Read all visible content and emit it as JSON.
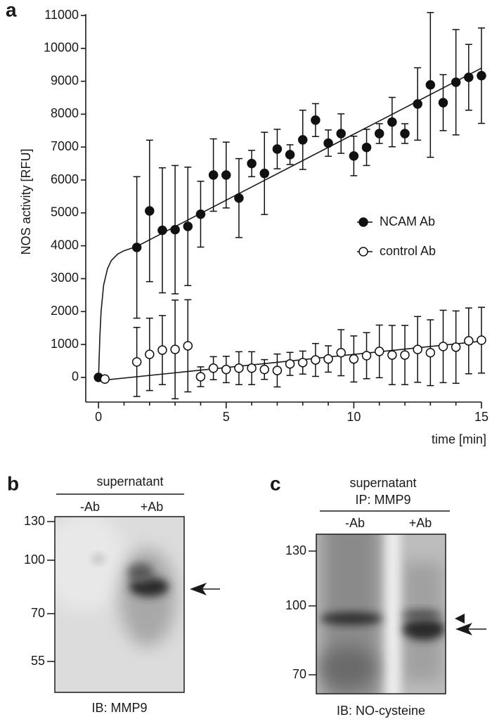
{
  "panel_a": {
    "label": "a"
  },
  "chart_data": {
    "type": "scatter-errorbar",
    "x_label": "time [min]",
    "y_label": "NOS activity [RFU]",
    "xlim": [
      -0.5,
      15
    ],
    "xticks": [
      0,
      5,
      10,
      15
    ],
    "x_minor_ticks": [
      1,
      2,
      3,
      4,
      6,
      7,
      8,
      9,
      11,
      12,
      13,
      14
    ],
    "ylim": [
      -750,
      11000
    ],
    "yticks": [
      0,
      1000,
      2000,
      3000,
      4000,
      5000,
      6000,
      7000,
      8000,
      9000,
      10000,
      11000
    ],
    "legend": "right",
    "series": [
      {
        "name": "NCAM Ab",
        "color": "#111111",
        "filled": true,
        "x": [
          0,
          1.5,
          2,
          2.5,
          3,
          3.5,
          4,
          4.5,
          5,
          5.5,
          6,
          6.5,
          7,
          7.5,
          8,
          8.5,
          9,
          9.5,
          10,
          10.5,
          11,
          11.5,
          12,
          12.5,
          13,
          13.5,
          14,
          14.5,
          15
        ],
        "values": [
          0,
          3950,
          5060,
          4470,
          4490,
          4590,
          4960,
          6150,
          6150,
          5450,
          6500,
          6200,
          6940,
          6770,
          7220,
          7820,
          7120,
          7410,
          6730,
          6990,
          7410,
          7760,
          7410,
          8310,
          8890,
          8350,
          8970,
          9120,
          9170
        ],
        "errors": [
          null,
          2150,
          2150,
          1900,
          1950,
          1800,
          1000,
          1100,
          1000,
          1200,
          400,
          1250,
          600,
          300,
          900,
          500,
          400,
          600,
          600,
          550,
          300,
          750,
          300,
          1100,
          2200,
          850,
          1600,
          1000,
          1450
        ]
      },
      {
        "name": "control Ab",
        "color": "#111111",
        "filled": false,
        "x": [
          0.25,
          1.5,
          2,
          2.5,
          3,
          3.5,
          4,
          4.5,
          5,
          5.5,
          6,
          6.5,
          7,
          7.5,
          8,
          8.5,
          9,
          9.5,
          10,
          10.5,
          11,
          11.5,
          12,
          12.5,
          13,
          13.5,
          14,
          14.5,
          15
        ],
        "values": [
          -50,
          470,
          700,
          830,
          850,
          960,
          20,
          280,
          240,
          280,
          280,
          240,
          210,
          410,
          450,
          530,
          560,
          750,
          560,
          660,
          790,
          680,
          680,
          850,
          750,
          940,
          920,
          1110,
          1130
        ],
        "errors": [
          null,
          1050,
          1100,
          1050,
          1500,
          1400,
          300,
          350,
          400,
          500,
          500,
          300,
          500,
          350,
          350,
          500,
          400,
          700,
          700,
          700,
          800,
          900,
          900,
          1000,
          1000,
          1100,
          1100,
          1000,
          1000
        ]
      }
    ],
    "fits": [
      {
        "x": [
          0,
          0.05,
          0.1,
          0.2,
          0.35,
          0.5,
          0.75,
          1,
          1.5,
          15
        ],
        "values": [
          0,
          1200,
          2000,
          2800,
          3300,
          3550,
          3750,
          3850,
          3980,
          9400
        ]
      },
      {
        "x": [
          0,
          15
        ],
        "values": [
          -100,
          1100
        ]
      }
    ]
  },
  "blot_b": {
    "label": "b",
    "header": "supernatant",
    "lanes": [
      "-Ab",
      "+Ab"
    ],
    "markers": [
      "130",
      "100",
      "70",
      "55"
    ],
    "footer": "IB: MMP9"
  },
  "blot_c": {
    "label": "c",
    "header": [
      "supernatant",
      "IP: MMP9"
    ],
    "lanes": [
      "-Ab",
      "+Ab"
    ],
    "markers": [
      "130",
      "100",
      "70"
    ],
    "footer": "IB: NO-cysteine"
  }
}
